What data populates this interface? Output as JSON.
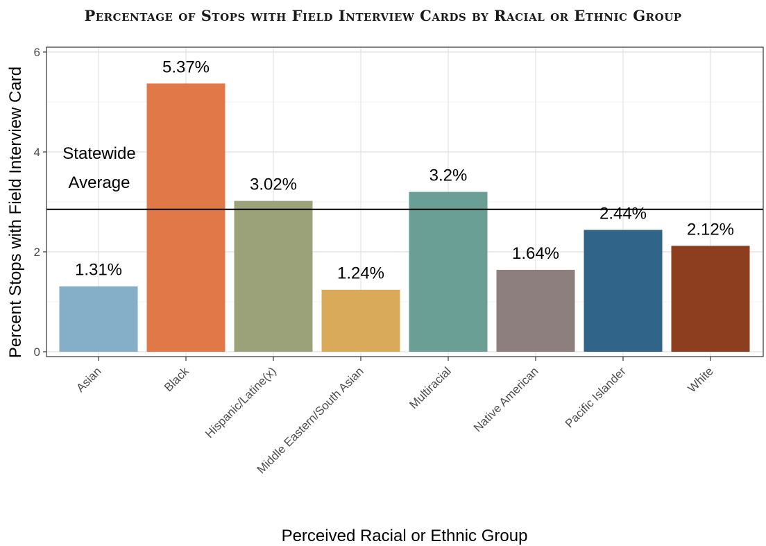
{
  "chart_data": {
    "type": "bar",
    "title": "Percentage of Stops with Field Interview Cards by Racial or Ethnic Group",
    "xlabel": "Perceived Racial or Ethnic Group",
    "ylabel": "Percent Stops with Field Interview Card",
    "categories": [
      "Asian",
      "Black",
      "Hispanic/Latine(x)",
      "Middle Eastern/South Asian",
      "Multiracial",
      "Native American",
      "Pacific Islander",
      "White"
    ],
    "values": [
      1.31,
      5.37,
      3.02,
      1.24,
      3.2,
      1.64,
      2.44,
      2.12
    ],
    "value_labels": [
      "1.31%",
      "5.37%",
      "3.02%",
      "1.24%",
      "3.2%",
      "1.64%",
      "2.44%",
      "2.12%"
    ],
    "colors": [
      "#85aec9",
      "#e07848",
      "#9ba279",
      "#d8aa5a",
      "#6a9f96",
      "#8c7f7e",
      "#306488",
      "#8c3e1f"
    ],
    "ylim": [
      0,
      6
    ],
    "yticks": [
      0,
      2,
      4,
      6
    ],
    "grid": true,
    "reference_line": {
      "value": 2.85,
      "label_lines": [
        "Statewide",
        "Average"
      ]
    }
  }
}
